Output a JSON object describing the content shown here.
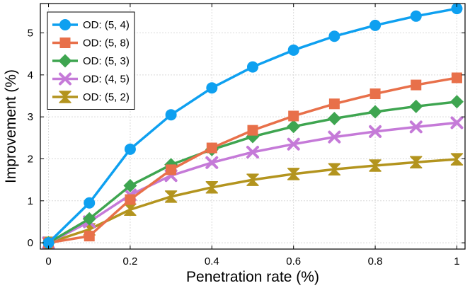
{
  "chart_data": {
    "type": "line",
    "xlabel": "Penetration rate (%)",
    "ylabel": "Improvement (%)",
    "xlim": [
      -0.02,
      1.02
    ],
    "ylim": [
      -0.15,
      5.7
    ],
    "xticks": [
      0,
      0.2,
      0.4,
      0.6,
      0.8,
      1
    ],
    "xtick_labels": [
      "0",
      "0.2",
      "0.4",
      "0.6",
      "0.8",
      "1"
    ],
    "yticks": [
      0,
      1,
      2,
      3,
      4,
      5
    ],
    "ytick_labels": [
      "0",
      "1",
      "2",
      "3",
      "4",
      "5"
    ],
    "grid": true,
    "legend_position": "top-left",
    "x": [
      0,
      0.1,
      0.2,
      0.3,
      0.4,
      0.5,
      0.6,
      0.7,
      0.8,
      0.9,
      1.0
    ],
    "series": [
      {
        "name": "OD: (5, 4)",
        "color": "#0ea0f0",
        "marker": "circle",
        "values": [
          0,
          0.95,
          2.23,
          3.05,
          3.69,
          4.19,
          4.59,
          4.92,
          5.18,
          5.4,
          5.58
        ]
      },
      {
        "name": "OD: (5, 8)",
        "color": "#e8704a",
        "marker": "square",
        "values": [
          0,
          0.16,
          1.03,
          1.74,
          2.26,
          2.68,
          3.02,
          3.31,
          3.55,
          3.76,
          3.93
        ]
      },
      {
        "name": "OD: (5, 3)",
        "color": "#3ea550",
        "marker": "diamond",
        "values": [
          0,
          0.57,
          1.36,
          1.86,
          2.22,
          2.53,
          2.77,
          2.96,
          3.12,
          3.25,
          3.36
        ]
      },
      {
        "name": "OD: (4, 5)",
        "color": "#c57ad8",
        "marker": "cross",
        "values": [
          0,
          0.5,
          1.14,
          1.6,
          1.91,
          2.16,
          2.35,
          2.52,
          2.65,
          2.76,
          2.86
        ]
      },
      {
        "name": "OD: (5, 2)",
        "color": "#b3941e",
        "marker": "hourglass",
        "values": [
          0,
          0.32,
          0.79,
          1.1,
          1.32,
          1.5,
          1.64,
          1.75,
          1.84,
          1.92,
          1.99
        ]
      }
    ]
  }
}
